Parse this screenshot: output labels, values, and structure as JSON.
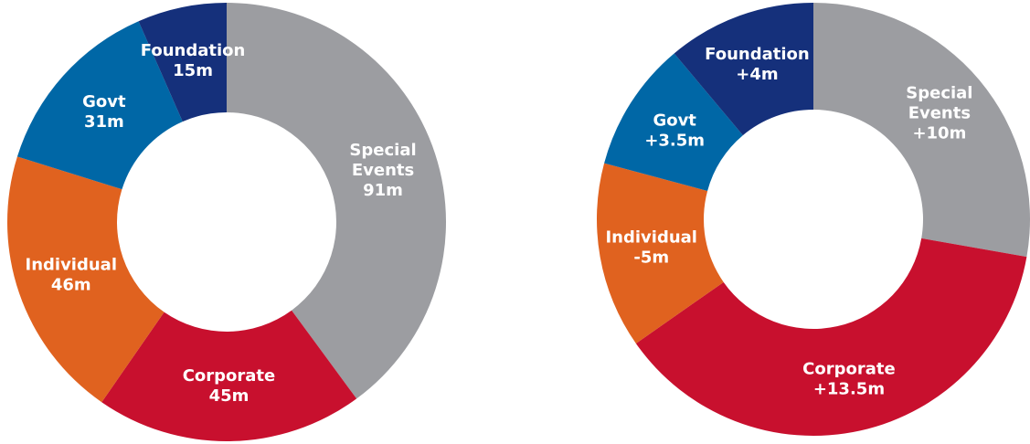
{
  "chart_data": [
    {
      "type": "pie",
      "categories": [
        "Special Events",
        "Corporate",
        "Individual",
        "Govt",
        "Foundation"
      ],
      "values": [
        91,
        45,
        46,
        31,
        15
      ],
      "value_labels": [
        "91m",
        "45m",
        "46m",
        "31m",
        "15m"
      ],
      "colors": [
        "#9c9da1",
        "#c8102e",
        "#e0621f",
        "#0067a6",
        "#15307b"
      ]
    },
    {
      "type": "pie",
      "categories": [
        "Special Events",
        "Corporate",
        "Individual",
        "Govt",
        "Foundation"
      ],
      "values": [
        10,
        13.5,
        -5,
        3.5,
        4
      ],
      "value_labels": [
        "+10m",
        "+13.5m",
        "-5m",
        "+3.5m",
        "+4m"
      ],
      "colors": [
        "#9c9da1",
        "#c8102e",
        "#e0621f",
        "#0067a6",
        "#15307b"
      ]
    }
  ]
}
